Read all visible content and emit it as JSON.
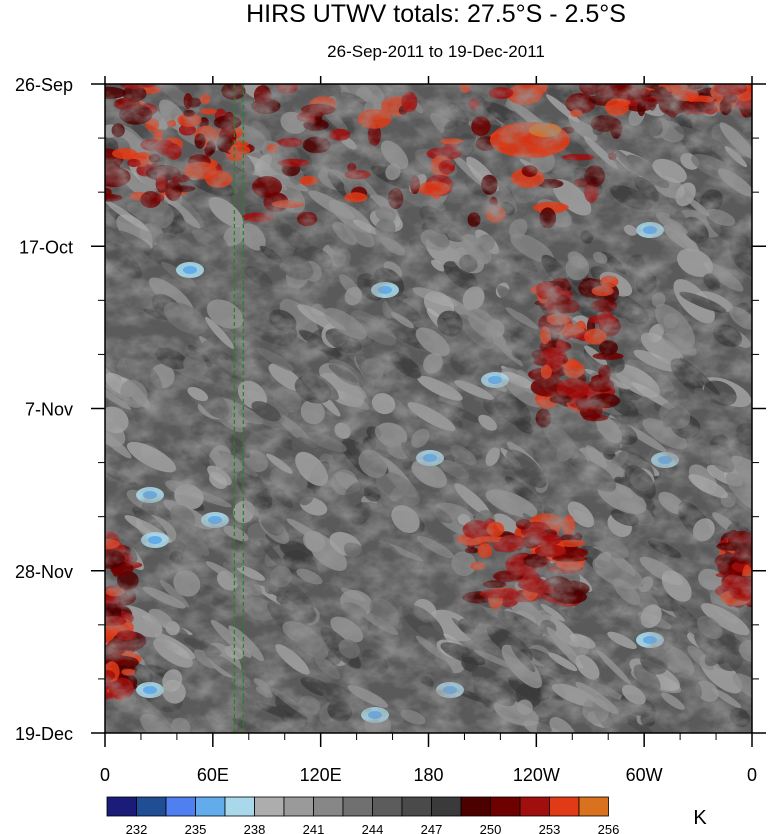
{
  "chart_data": {
    "type": "heatmap",
    "title": "HIRS UTWV totals: 27.5°S - 2.5°S",
    "subtitle": "26-Sep-2011 to 19-Dec-2011",
    "x_ticks": [
      "0",
      "60E",
      "120E",
      "180",
      "120W",
      "60W",
      "0"
    ],
    "x_tick_values": [
      0,
      60,
      120,
      180,
      240,
      300,
      360
    ],
    "xlim": [
      0,
      360
    ],
    "y_ticks": [
      "26-Sep",
      "17-Oct",
      "7-Nov",
      "28-Nov",
      "19-Dec"
    ],
    "ylim": [
      "26-Sep-2011",
      "19-Dec-2011"
    ],
    "colorbar": {
      "unit": "K",
      "levels": [
        232,
        233.5,
        235,
        236.5,
        238,
        239.5,
        241,
        242.5,
        244,
        245.5,
        247,
        248.5,
        250,
        251.5,
        253,
        254.5,
        256
      ],
      "labels": [
        "232",
        "235",
        "238",
        "241",
        "244",
        "247",
        "250",
        "253",
        "256"
      ],
      "colors": [
        "#1b1b7a",
        "#1f4e95",
        "#4f7ff0",
        "#62acec",
        "#a9d8ea",
        "#adadad",
        "#9a9a9a",
        "#878787",
        "#707070",
        "#5c5c5c",
        "#4a4a4a",
        "#3a3a3a",
        "#4d0000",
        "#6e0000",
        "#a00e0e",
        "#e03a16",
        "#d8721f"
      ]
    },
    "highlight_lines_x": [
      72,
      77
    ]
  }
}
